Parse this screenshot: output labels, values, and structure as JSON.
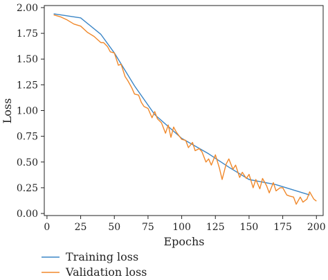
{
  "chart_data": {
    "type": "line",
    "title": "",
    "xlabel": "Epochs",
    "ylabel": "Loss",
    "xlim": [
      -2,
      205
    ],
    "ylim": [
      -0.02,
      2.02
    ],
    "xticks": [
      0,
      25,
      50,
      75,
      100,
      125,
      150,
      175,
      200
    ],
    "yticks": [
      0.0,
      0.25,
      0.5,
      0.75,
      1.0,
      1.25,
      1.5,
      1.75,
      2.0
    ],
    "xtick_labels": [
      "0",
      "25",
      "50",
      "75",
      "100",
      "125",
      "150",
      "175",
      "200"
    ],
    "ytick_labels": [
      "0.00",
      "0.25",
      "0.50",
      "0.75",
      "1.00",
      "1.25",
      "1.50",
      "1.75",
      "2.00"
    ],
    "grid": false,
    "legend_placement": "bottom-left, below plot",
    "series": [
      {
        "name": "Training loss",
        "color": "#3a85c6",
        "x": [
          5,
          25,
          40,
          50,
          65,
          80,
          100,
          120,
          135,
          150,
          170,
          195
        ],
        "y": [
          1.94,
          1.9,
          1.74,
          1.56,
          1.24,
          0.96,
          0.73,
          0.58,
          0.45,
          0.33,
          0.28,
          0.18
        ]
      },
      {
        "name": "Validation loss",
        "color": "#f0882a",
        "x": [
          5,
          10,
          15,
          20,
          25,
          30,
          35,
          40,
          42,
          45,
          47,
          50,
          53,
          55,
          58,
          60,
          63,
          65,
          68,
          70,
          72,
          75,
          78,
          80,
          82,
          85,
          88,
          90,
          92,
          94,
          96,
          100,
          103,
          105,
          108,
          110,
          113,
          115,
          118,
          120,
          122,
          125,
          128,
          130,
          133,
          135,
          138,
          140,
          143,
          145,
          148,
          150,
          153,
          155,
          158,
          160,
          163,
          165,
          168,
          170,
          173,
          175,
          178,
          180,
          183,
          185,
          188,
          190,
          193,
          195,
          198,
          200
        ],
        "y": [
          1.93,
          1.91,
          1.88,
          1.84,
          1.82,
          1.76,
          1.72,
          1.66,
          1.66,
          1.62,
          1.57,
          1.56,
          1.44,
          1.45,
          1.33,
          1.29,
          1.22,
          1.16,
          1.15,
          1.08,
          1.04,
          1.02,
          0.93,
          0.99,
          0.92,
          0.88,
          0.78,
          0.86,
          0.74,
          0.84,
          0.79,
          0.72,
          0.71,
          0.64,
          0.69,
          0.61,
          0.63,
          0.6,
          0.5,
          0.53,
          0.47,
          0.57,
          0.44,
          0.33,
          0.48,
          0.53,
          0.43,
          0.47,
          0.35,
          0.4,
          0.34,
          0.38,
          0.25,
          0.33,
          0.24,
          0.34,
          0.27,
          0.2,
          0.3,
          0.22,
          0.25,
          0.25,
          0.18,
          0.17,
          0.16,
          0.09,
          0.16,
          0.11,
          0.14,
          0.21,
          0.14,
          0.12
        ]
      }
    ]
  }
}
